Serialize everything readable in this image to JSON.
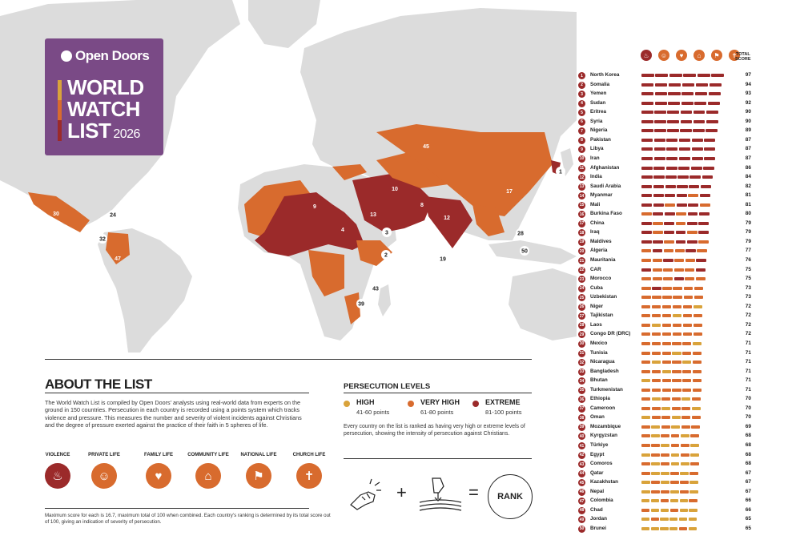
{
  "logo": {
    "brand": "Open Doors",
    "title_line1": "WORLD",
    "title_line2": "WATCH",
    "title_line3": "LIST",
    "year": "2026"
  },
  "about": {
    "title": "ABOUT THE LIST",
    "text": "The World Watch List is compiled by Open Doors' analysts using real-world data from experts on the ground in 150 countries. Persecution in each country is recorded using a points system which tracks violence and pressure. This measures the number and severity of violent incidents against Christians and the degree of pressure exerted against the practice of their faith in 5 spheres of life.",
    "spheres": [
      {
        "label": "VIOLENCE",
        "icon": "flame-icon",
        "glyph": "♨",
        "color": "#9b2a2a"
      },
      {
        "label": "PRIVATE LIFE",
        "icon": "person-icon",
        "glyph": "☺",
        "color": "#d86b2e"
      },
      {
        "label": "FAMILY LIFE",
        "icon": "family-icon",
        "glyph": "♥",
        "color": "#d86b2e"
      },
      {
        "label": "COMMUNITY LIFE",
        "icon": "house-icon",
        "glyph": "⌂",
        "color": "#d86b2e"
      },
      {
        "label": "NATIONAL LIFE",
        "icon": "flag-icon",
        "glyph": "⚑",
        "color": "#d86b2e"
      },
      {
        "label": "CHURCH LIFE",
        "icon": "church-icon",
        "glyph": "✝",
        "color": "#d86b2e"
      }
    ],
    "footnote": "Maximum score for each is 16.7, maximum total of 100 when combined. Each country's ranking is determined by its total score out of 100, giving an indication of severity of persecution."
  },
  "levels": {
    "title": "PERSECUTION LEVELS",
    "items": [
      {
        "name": "HIGH",
        "range": "41-60 points",
        "color": "#d9a33b"
      },
      {
        "name": "VERY HIGH",
        "range": "61-80 points",
        "color": "#d86b2e"
      },
      {
        "name": "EXTREME",
        "range": "81-100 points",
        "color": "#9b2a2a"
      }
    ],
    "description": "Every country on the list is ranked as having very high or extreme levels of persecution, showing the intensity of persecution against Christians.",
    "formula": {
      "plus": "+",
      "equals": "=",
      "rank": "RANK"
    }
  },
  "list_header": {
    "total_score_line1": "TOTAL",
    "total_score_line2": "SCORE"
  },
  "colors": {
    "extreme": "#9b2a2a",
    "very_high": "#d86b2e",
    "high": "#d9a33b",
    "land": "#dcdcdc"
  },
  "countries": [
    {
      "rank": "1",
      "name": "North Korea",
      "score": "97"
    },
    {
      "rank": "2",
      "name": "Somalia",
      "score": "94"
    },
    {
      "rank": "3",
      "name": "Yemen",
      "score": "93"
    },
    {
      "rank": "4",
      "name": "Sudan",
      "score": "92"
    },
    {
      "rank": "5",
      "name": "Eritrea",
      "score": "90"
    },
    {
      "rank": "6",
      "name": "Syria",
      "score": "90"
    },
    {
      "rank": "7",
      "name": "Nigeria",
      "score": "89"
    },
    {
      "rank": "8",
      "name": "Pakistan",
      "score": "87"
    },
    {
      "rank": "9",
      "name": "Libya",
      "score": "87"
    },
    {
      "rank": "10",
      "name": "Iran",
      "score": "87"
    },
    {
      "rank": "11",
      "name": "Afghanistan",
      "score": "86"
    },
    {
      "rank": "12",
      "name": "India",
      "score": "84"
    },
    {
      "rank": "13",
      "name": "Saudi Arabia",
      "score": "82"
    },
    {
      "rank": "14",
      "name": "Myanmar",
      "score": "81"
    },
    {
      "rank": "15",
      "name": "Mali",
      "score": "81"
    },
    {
      "rank": "16",
      "name": "Burkina Faso",
      "score": "80"
    },
    {
      "rank": "17",
      "name": "China",
      "score": "79"
    },
    {
      "rank": "18",
      "name": "Iraq",
      "score": "79"
    },
    {
      "rank": "19",
      "name": "Maldives",
      "score": "79"
    },
    {
      "rank": "20",
      "name": "Algeria",
      "score": "77"
    },
    {
      "rank": "21",
      "name": "Mauritania",
      "score": "76"
    },
    {
      "rank": "22",
      "name": "CAR",
      "score": "75"
    },
    {
      "rank": "23",
      "name": "Morocco",
      "score": "75"
    },
    {
      "rank": "24",
      "name": "Cuba",
      "score": "73"
    },
    {
      "rank": "25",
      "name": "Uzbekistan",
      "score": "73"
    },
    {
      "rank": "26",
      "name": "Niger",
      "score": "72"
    },
    {
      "rank": "27",
      "name": "Tajikistan",
      "score": "72"
    },
    {
      "rank": "28",
      "name": "Laos",
      "score": "72"
    },
    {
      "rank": "29",
      "name": "Congo DR (DRC)",
      "score": "72"
    },
    {
      "rank": "30",
      "name": "Mexico",
      "score": "71"
    },
    {
      "rank": "31",
      "name": "Tunisia",
      "score": "71"
    },
    {
      "rank": "32",
      "name": "Nicaragua",
      "score": "71"
    },
    {
      "rank": "33",
      "name": "Bangladesh",
      "score": "71"
    },
    {
      "rank": "34",
      "name": "Bhutan",
      "score": "71"
    },
    {
      "rank": "35",
      "name": "Turkmenistan",
      "score": "71"
    },
    {
      "rank": "36",
      "name": "Ethiopia",
      "score": "70"
    },
    {
      "rank": "37",
      "name": "Cameroon",
      "score": "70"
    },
    {
      "rank": "38",
      "name": "Oman",
      "score": "70"
    },
    {
      "rank": "39",
      "name": "Mozambique",
      "score": "69"
    },
    {
      "rank": "40",
      "name": "Kyrgyzstan",
      "score": "68"
    },
    {
      "rank": "41",
      "name": "Türkiye",
      "score": "68"
    },
    {
      "rank": "42",
      "name": "Egypt",
      "score": "68"
    },
    {
      "rank": "43",
      "name": "Comoros",
      "score": "68"
    },
    {
      "rank": "44",
      "name": "Qatar",
      "score": "67"
    },
    {
      "rank": "45",
      "name": "Kazakhstan",
      "score": "67"
    },
    {
      "rank": "46",
      "name": "Nepal",
      "score": "67"
    },
    {
      "rank": "47",
      "name": "Colombia",
      "score": "66"
    },
    {
      "rank": "48",
      "name": "Chad",
      "score": "66"
    },
    {
      "rank": "49",
      "name": "Jordan",
      "score": "65"
    },
    {
      "rank": "50",
      "name": "Brunei",
      "score": "65"
    }
  ]
}
